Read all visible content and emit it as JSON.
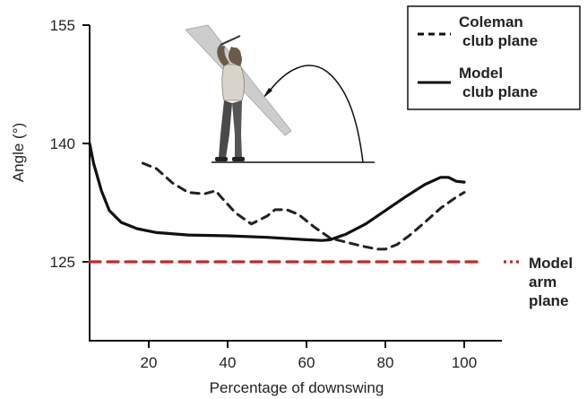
{
  "chart_data": {
    "type": "line",
    "xlabel": "Percentage of downswing",
    "ylabel": "Angle (°)",
    "xlim": [
      5,
      110
    ],
    "ylim": [
      111,
      155
    ],
    "xticks": [
      20,
      40,
      60,
      80,
      100
    ],
    "yticks": [
      125,
      140,
      155
    ],
    "grid": false,
    "legend_position": "top-right",
    "series": [
      {
        "name": "Coleman club plane",
        "style": "dashed",
        "color": "#222222",
        "x": [
          18.5,
          22,
          26,
          30,
          34,
          37,
          38,
          42,
          46,
          50,
          52,
          55,
          58,
          62,
          66,
          70,
          74,
          78,
          80,
          83,
          86,
          90,
          94,
          98,
          100
        ],
        "y": [
          137.5,
          136.8,
          135,
          133.8,
          133.6,
          134,
          133.4,
          131.2,
          129.8,
          130.8,
          131.6,
          131.6,
          131,
          129.4,
          128,
          127.5,
          127,
          126.6,
          126.6,
          127.2,
          128.3,
          130,
          131.8,
          133.2,
          133.8
        ]
      },
      {
        "name": "Model club plane",
        "style": "solid",
        "color": "#111111",
        "x": [
          5,
          6,
          8,
          10,
          13,
          17,
          22,
          30,
          40,
          50,
          60,
          64,
          66,
          70,
          75,
          80,
          85,
          90,
          94,
          96,
          98,
          100
        ],
        "y": [
          140,
          137.5,
          134,
          131.5,
          130,
          129.2,
          128.7,
          128.4,
          128.3,
          128.1,
          127.8,
          127.7,
          127.8,
          128.5,
          129.8,
          131.5,
          133.2,
          134.8,
          135.7,
          135.7,
          135.2,
          135.1
        ]
      },
      {
        "name": "Model arm plane",
        "style": "dashed",
        "color": "#c0282a",
        "x": [
          5,
          105
        ],
        "y": [
          125,
          125
        ]
      }
    ],
    "annotations": [
      {
        "lines": [
          "Model",
          "arm",
          "plane"
        ],
        "color": "#222222"
      }
    ],
    "legend": [
      {
        "lines": [
          "Coleman",
          "club plane"
        ],
        "series": 0
      },
      {
        "lines": [
          "Model",
          "club plane"
        ],
        "series": 1
      }
    ]
  },
  "colors": {
    "axis": "#111111",
    "arm_plane": "#c0282a",
    "plane_sheet": "#c8c8c8",
    "golfer_skin": "#6b5a48",
    "golfer_shirt": "#d8d4cc",
    "golfer_pants": "#4a4a4a"
  },
  "illustration": {
    "icon": "golfer-swing-plane-icon"
  }
}
